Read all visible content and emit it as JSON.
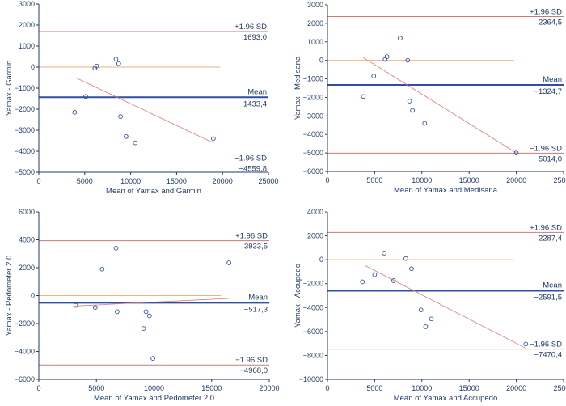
{
  "colors": {
    "axis": "#1f3a68",
    "text": "#1f3a68",
    "mean_line": "#2e4fa3",
    "limit_line": "#c97a7a",
    "zero_line": "#f2b27a",
    "regression_line": "#e07a7a",
    "point": "#2e4fa3"
  },
  "chart_data": [
    {
      "type": "scatter",
      "xlabel": "Mean of Yamax and Garmin",
      "ylabel": "Yamax - Garmin",
      "xlim": [
        0,
        25000
      ],
      "ylim": [
        -5000,
        3000
      ],
      "xticks": [
        0,
        5000,
        10000,
        15000,
        20000,
        25000
      ],
      "yticks": [
        3000,
        2000,
        1000,
        0,
        -1000,
        -2000,
        -3000,
        -4000,
        -5000
      ],
      "xtick_labels": [
        "0",
        "5000",
        "10000",
        "15000",
        "20000",
        "25000"
      ],
      "ytick_labels": [
        "3000",
        "2000",
        "1000",
        "0",
        "−1000",
        "−2000",
        "−3000",
        "−4000",
        "−5000"
      ],
      "mean": -1433.4,
      "upper_loa": 1693.0,
      "lower_loa": -4559.8,
      "upper_label": "+1.96 SD",
      "upper_value_label": "1693,0",
      "mean_label": "Mean",
      "mean_value_label": "−1433,4",
      "lower_label": "−1.96 SD",
      "lower_value_label": "−4559,8",
      "regression": [
        [
          4000,
          -500
        ],
        [
          19000,
          -3600
        ]
      ],
      "points": [
        {
          "x": 3900,
          "y": -2150
        },
        {
          "x": 5100,
          "y": -1400
        },
        {
          "x": 6100,
          "y": -50
        },
        {
          "x": 6300,
          "y": 50
        },
        {
          "x": 8400,
          "y": 380
        },
        {
          "x": 8700,
          "y": 170
        },
        {
          "x": 8900,
          "y": -2350
        },
        {
          "x": 9500,
          "y": -3300
        },
        {
          "x": 10500,
          "y": -3600
        },
        {
          "x": 19000,
          "y": -3400
        }
      ]
    },
    {
      "type": "scatter",
      "xlabel": "Mean of Yamax and Medisana",
      "ylabel": "Yamax - Medisana",
      "xlim": [
        0,
        25000
      ],
      "ylim": [
        -6000,
        3000
      ],
      "xticks": [
        0,
        5000,
        10000,
        15000,
        20000,
        25000
      ],
      "yticks": [
        3000,
        2000,
        1000,
        0,
        -1000,
        -2000,
        -3000,
        -4000,
        -5000,
        -6000
      ],
      "xtick_labels": [
        "0",
        "5000",
        "10000",
        "15000",
        "20000",
        "25000"
      ],
      "ytick_labels": [
        "3000",
        "2000",
        "1000",
        "0",
        "−1000",
        "−2000",
        "−3000",
        "−4000",
        "−5000",
        "−6000"
      ],
      "mean": -1324.7,
      "upper_loa": 2364.5,
      "lower_loa": -5014.0,
      "upper_label": "+1.96 SD",
      "upper_value_label": "2364,5",
      "mean_label": "Mean",
      "mean_value_label": "−1324,7",
      "lower_label": "−1.96 SD",
      "lower_value_label": "−5014,0",
      "regression": [
        [
          3800,
          150
        ],
        [
          20000,
          -5000
        ]
      ],
      "points": [
        {
          "x": 3800,
          "y": -1950
        },
        {
          "x": 4900,
          "y": -850
        },
        {
          "x": 6100,
          "y": 50
        },
        {
          "x": 6300,
          "y": 200
        },
        {
          "x": 7700,
          "y": 1200
        },
        {
          "x": 8500,
          "y": 0
        },
        {
          "x": 8700,
          "y": -2200
        },
        {
          "x": 9000,
          "y": -2700
        },
        {
          "x": 10300,
          "y": -3400
        },
        {
          "x": 20000,
          "y": -5000
        }
      ]
    },
    {
      "type": "scatter",
      "xlabel": "Mean of Yamax and Pedometer 2.0",
      "ylabel": "Yamax - Pedometer 2.0",
      "xlim": [
        0,
        20000
      ],
      "ylim": [
        -6000,
        6000
      ],
      "xticks": [
        0,
        5000,
        10000,
        15000,
        20000
      ],
      "yticks": [
        6000,
        4000,
        2000,
        0,
        -2000,
        -4000,
        -6000
      ],
      "xtick_labels": [
        "0",
        "5000",
        "10000",
        "15000",
        "20000"
      ],
      "ytick_labels": [
        "6000",
        "4000",
        "2000",
        "0",
        "−2000",
        "−4000",
        "−6000"
      ],
      "mean": -517.3,
      "upper_loa": 3933.5,
      "lower_loa": -4968.0,
      "upper_label": "+1.96 SD",
      "upper_value_label": "3933,5",
      "mean_label": "Mean",
      "mean_value_label": "−517,3",
      "lower_label": "−1.96 SD",
      "lower_value_label": "−4968,0",
      "regression": [
        [
          3000,
          -750
        ],
        [
          16500,
          -200
        ]
      ],
      "points": [
        {
          "x": 3200,
          "y": -700
        },
        {
          "x": 4900,
          "y": -850
        },
        {
          "x": 5500,
          "y": 1900
        },
        {
          "x": 6700,
          "y": 3400
        },
        {
          "x": 6800,
          "y": -1150
        },
        {
          "x": 9100,
          "y": -2350
        },
        {
          "x": 9300,
          "y": -1150
        },
        {
          "x": 9600,
          "y": -1450
        },
        {
          "x": 9900,
          "y": -4500
        },
        {
          "x": 16500,
          "y": 2350
        }
      ]
    },
    {
      "type": "scatter",
      "xlabel": "Mean of Yamax and Accupedo",
      "ylabel": "Yamax - Accupedo",
      "xlim": [
        0,
        25000
      ],
      "ylim": [
        -10000,
        4000
      ],
      "xticks": [
        0,
        5000,
        10000,
        15000,
        20000,
        25000
      ],
      "yticks": [
        4000,
        2000,
        0,
        -2000,
        -4000,
        -6000,
        -8000,
        -10000
      ],
      "xtick_labels": [
        "0",
        "5000",
        "10000",
        "15000",
        "20000",
        "25000"
      ],
      "ytick_labels": [
        "4000",
        "2000",
        "0",
        "−2000",
        "−4000",
        "−6000",
        "−8000",
        "−10000"
      ],
      "mean": -2591.5,
      "upper_loa": 2287.4,
      "lower_loa": -7470.4,
      "upper_label": "+1.96 SD",
      "upper_value_label": "2287,4",
      "mean_label": "Mean",
      "mean_value_label": "−2591,5",
      "lower_label": "−1.96 SD",
      "lower_value_label": "−7470,4",
      "regression": [
        [
          4000,
          -500
        ],
        [
          21000,
          -7400
        ]
      ],
      "points": [
        {
          "x": 3700,
          "y": -1850
        },
        {
          "x": 5000,
          "y": -1250
        },
        {
          "x": 6000,
          "y": 550
        },
        {
          "x": 7000,
          "y": -1750
        },
        {
          "x": 8300,
          "y": 100
        },
        {
          "x": 8900,
          "y": -750
        },
        {
          "x": 9900,
          "y": -4200
        },
        {
          "x": 10400,
          "y": -5600
        },
        {
          "x": 11000,
          "y": -4950
        },
        {
          "x": 21000,
          "y": -7050
        }
      ]
    }
  ]
}
